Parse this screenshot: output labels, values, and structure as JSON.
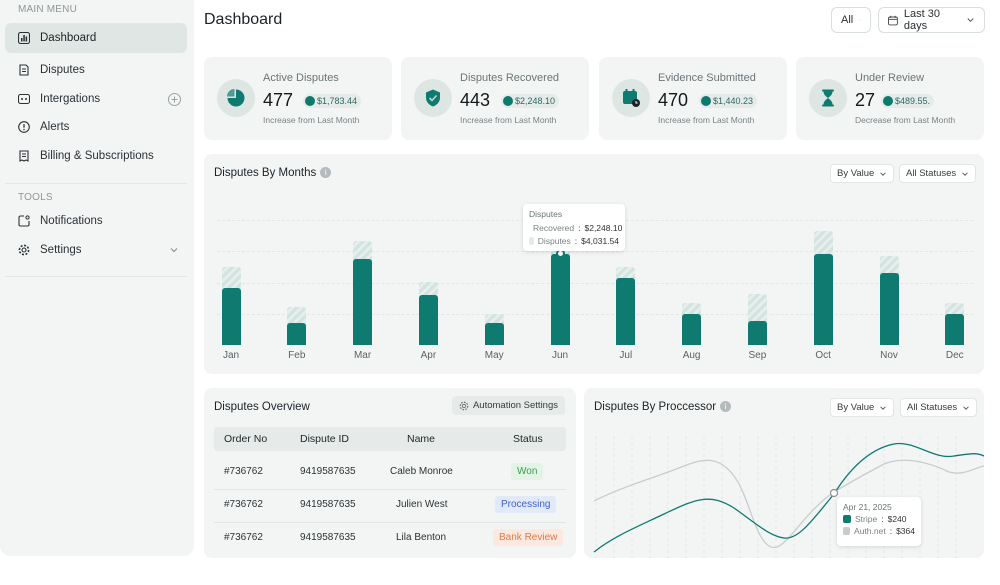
{
  "sidebar": {
    "main_menu_title": "MAIN MENU",
    "items": [
      {
        "label": "Dashboard",
        "icon": "dashboard-icon"
      },
      {
        "label": "Disputes",
        "icon": "disputes-icon"
      },
      {
        "label": "Intergations",
        "icon": "integrations-icon"
      },
      {
        "label": "Alerts",
        "icon": "alert-icon"
      },
      {
        "label": "Billing & Subscriptions",
        "icon": "billing-icon"
      }
    ],
    "tools_title": "TOOLS",
    "tools": [
      {
        "label": "Notifications",
        "icon": "notification-icon"
      },
      {
        "label": "Settings",
        "icon": "settings-icon"
      }
    ]
  },
  "header": {
    "title": "Dashboard",
    "filter_all": "All",
    "date_range": "Last 30 days"
  },
  "stats": [
    {
      "label": "Active Disputes",
      "value": "477",
      "amount": "$1,783.44",
      "note": "Increase from Last Month"
    },
    {
      "label": "Disputes Recovered",
      "value": "443",
      "amount": "$2,248.10",
      "note": "Increase from Last Month"
    },
    {
      "label": "Evidence Submitted",
      "value": "470",
      "amount": "$1,440.23",
      "note": "Increase from Last Month"
    },
    {
      "label": "Under Review",
      "value": "27",
      "amount": "$489.55.",
      "note": "Decrease from Last Month"
    }
  ],
  "months_chart": {
    "title": "Disputes By Months",
    "filter_value": "By Value",
    "filter_status": "All Statuses",
    "tooltip": {
      "title": "Disputes",
      "recovered_label": "Recovered",
      "recovered_value": "$2,248.10",
      "disputes_label": "Disputes",
      "disputes_value": "$4,031.54"
    }
  },
  "chart_data": {
    "type": "bar",
    "categories": [
      "Jan",
      "Feb",
      "Mar",
      "Apr",
      "May",
      "Jun",
      "Jul",
      "Aug",
      "Sep",
      "Oct",
      "Nov",
      "Dec"
    ],
    "series": [
      {
        "name": "Recovered",
        "values": [
          54,
          21,
          81,
          47,
          21,
          86,
          63,
          29,
          23,
          86,
          68,
          29
        ]
      },
      {
        "name": "Disputes",
        "values": [
          74,
          36,
          98,
          60,
          29,
          95,
          74,
          40,
          48,
          108,
          84,
          40
        ]
      }
    ],
    "ylim": [
      0,
      120
    ],
    "colors": {
      "recovered": "#0f7a70",
      "disputes": "#d3e3df"
    }
  },
  "overview": {
    "title": "Disputes Overview",
    "automation_label": "Automation Settings",
    "columns": [
      "Order No",
      "Dispute ID",
      "Name",
      "Status"
    ],
    "rows": [
      {
        "order": "#736762",
        "dispute_id": "9419587635",
        "name": "Caleb Monroe",
        "status": "Won"
      },
      {
        "order": "#736762",
        "dispute_id": "9419587635",
        "name": "Julien West",
        "status": "Processing"
      },
      {
        "order": "#736762",
        "dispute_id": "9419587635",
        "name": "Lila Benton",
        "status": "Bank Review"
      }
    ]
  },
  "processor": {
    "title": "Disputes By Proccessor",
    "filter_value": "By Value",
    "filter_status": "All Statuses",
    "tooltip": {
      "date": "Apr 21, 2025",
      "stripe_label": "Stripe",
      "stripe_value": "$240",
      "auth_label": "Auth.net",
      "auth_value": "$364"
    }
  }
}
